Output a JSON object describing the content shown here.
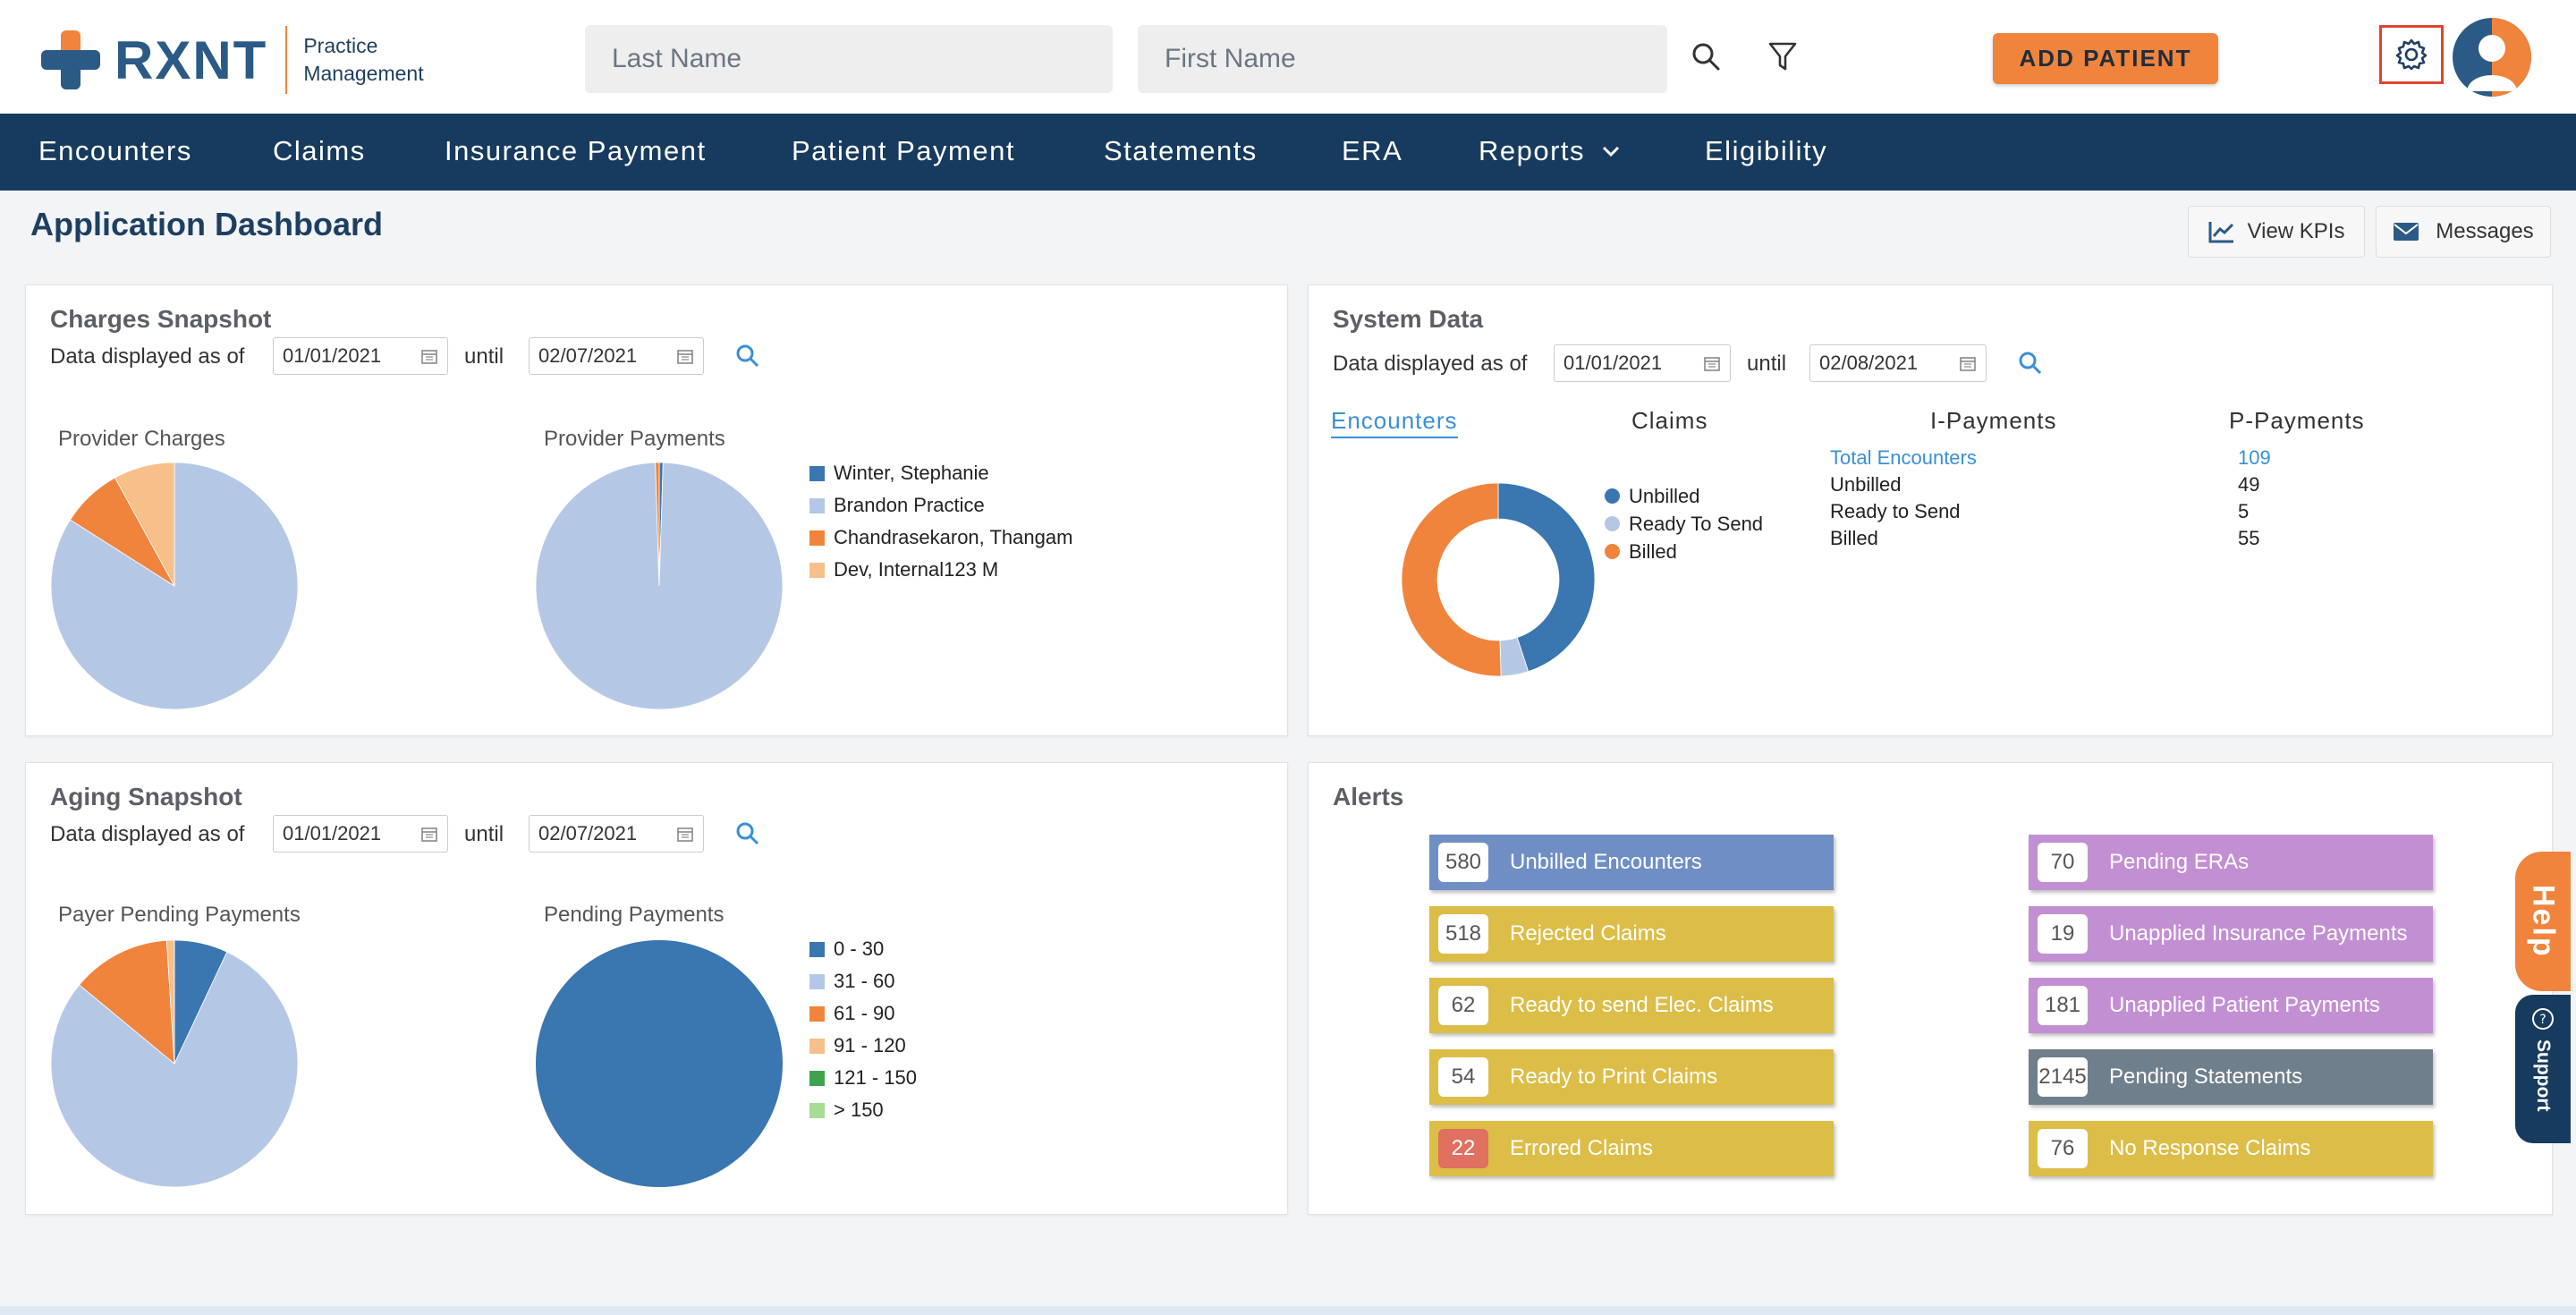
{
  "brand": {
    "name": "RXNT",
    "subtitle_line1": "Practice",
    "subtitle_line2": "Management",
    "colors": {
      "orange": "#f0843c",
      "navy": "#173b5e",
      "blue": "#2b5a86"
    }
  },
  "search": {
    "last_name_placeholder": "Last Name",
    "first_name_placeholder": "First Name"
  },
  "header": {
    "add_patient": "ADD PATIENT",
    "search_icon": "search-icon",
    "filter_icon": "filter-icon",
    "settings_icon": "gear-icon"
  },
  "nav": [
    {
      "label": "Encounters"
    },
    {
      "label": "Claims"
    },
    {
      "label": "Insurance Payment"
    },
    {
      "label": "Patient Payment"
    },
    {
      "label": "Statements"
    },
    {
      "label": "ERA"
    },
    {
      "label": "Reports"
    },
    {
      "label": "Eligibility"
    }
  ],
  "page": {
    "title": "Application Dashboard",
    "view_kpis": "View KPIs",
    "messages": "Messages"
  },
  "charges": {
    "title": "Charges Snapshot",
    "as_of": "Data displayed as of",
    "until": "until",
    "from_date": "01/01/2021",
    "to_date": "02/07/2021",
    "provider_charges_label": "Provider Charges",
    "provider_payments_label": "Provider Payments",
    "legend": [
      {
        "name": "Winter, Stephanie",
        "color": "#3a76b0"
      },
      {
        "name": "Brandon Practice",
        "color": "#b4c8e6"
      },
      {
        "name": "Chandrasekaron, Thangam",
        "color": "#f0843c"
      },
      {
        "name": "Dev, Internal123 M",
        "color": "#f7c08a"
      }
    ]
  },
  "system": {
    "title": "System Data",
    "as_of": "Data displayed as of",
    "until": "until",
    "from_date": "01/01/2021",
    "to_date": "02/08/2021",
    "tabs": [
      "Encounters",
      "Claims",
      "I-Payments",
      "P-Payments"
    ],
    "legend": [
      {
        "name": "Unbilled",
        "color": "#3a76b0"
      },
      {
        "name": "Ready To Send",
        "color": "#b4c8e6"
      },
      {
        "name": "Billed",
        "color": "#f0843c"
      }
    ],
    "rows": [
      {
        "label": "Total Encounters",
        "value": "109"
      },
      {
        "label": "Unbilled",
        "value": "49"
      },
      {
        "label": "Ready to Send",
        "value": "5"
      },
      {
        "label": "Billed",
        "value": "55"
      }
    ]
  },
  "aging": {
    "title": "Aging Snapshot",
    "as_of": "Data displayed as of",
    "until": "until",
    "from_date": "01/01/2021",
    "to_date": "02/07/2021",
    "payer_pending_label": "Payer Pending Payments",
    "pending_label": "Pending Payments",
    "legend": [
      {
        "name": "0 - 30",
        "color": "#3a76b0"
      },
      {
        "name": "31 - 60",
        "color": "#b4c8e6"
      },
      {
        "name": "61 - 90",
        "color": "#f0843c"
      },
      {
        "name": "91 - 120",
        "color": "#f7c08a"
      },
      {
        "name": "121 - 150",
        "color": "#3fa34d"
      },
      {
        "name": "> 150",
        "color": "#a6dc94"
      }
    ]
  },
  "alerts": {
    "title": "Alerts",
    "left": [
      {
        "count": "580",
        "label": "Unbilled Encounters",
        "color": "#6f8fc4"
      },
      {
        "count": "518",
        "label": "Rejected Claims",
        "color": "#dcbd47"
      },
      {
        "count": "62",
        "label": "Ready to send Elec. Claims",
        "color": "#dcbd47"
      },
      {
        "count": "54",
        "label": "Ready to Print Claims",
        "color": "#dcbd47"
      },
      {
        "count": "22",
        "label": "Errored Claims",
        "color": "#dcbd47",
        "count_bg": "#e0705f"
      }
    ],
    "right": [
      {
        "count": "70",
        "label": "Pending ERAs",
        "color": "#c38fd3"
      },
      {
        "count": "19",
        "label": "Unapplied Insurance Payments",
        "color": "#c38fd3"
      },
      {
        "count": "181",
        "label": "Unapplied Patient Payments",
        "color": "#c38fd3"
      },
      {
        "count": "2145",
        "label": "Pending Statements",
        "color": "#6f7f8c"
      },
      {
        "count": "76",
        "label": "No Response Claims",
        "color": "#dcbd47"
      }
    ]
  },
  "side": {
    "help": "Help",
    "support": "Support"
  },
  "chart_data": [
    {
      "type": "pie",
      "title": "Provider Charges",
      "categories": [
        "Winter, Stephanie",
        "Brandon Practice",
        "Chandrasekaron, Thangam",
        "Dev, Internal123 M"
      ],
      "values": [
        0,
        84,
        8,
        8
      ]
    },
    {
      "type": "pie",
      "title": "Provider Payments",
      "categories": [
        "Winter, Stephanie",
        "Brandon Practice",
        "Chandrasekaron, Thangam",
        "Dev, Internal123 M"
      ],
      "values": [
        0.5,
        99,
        0.5,
        0
      ]
    },
    {
      "type": "pie",
      "title": "Encounters",
      "categories": [
        "Unbilled",
        "Ready To Send",
        "Billed"
      ],
      "values": [
        49,
        5,
        55
      ]
    },
    {
      "type": "pie",
      "title": "Payer Pending Payments",
      "categories": [
        "0 - 30",
        "31 - 60",
        "61 - 90",
        "91 - 120",
        "121 - 150",
        "> 150"
      ],
      "values": [
        7,
        79,
        13,
        1,
        0,
        0
      ]
    },
    {
      "type": "pie",
      "title": "Pending Payments",
      "categories": [
        "0 - 30",
        "31 - 60",
        "61 - 90",
        "91 - 120",
        "121 - 150",
        "> 150"
      ],
      "values": [
        100,
        0,
        0,
        0,
        0,
        0
      ]
    }
  ]
}
